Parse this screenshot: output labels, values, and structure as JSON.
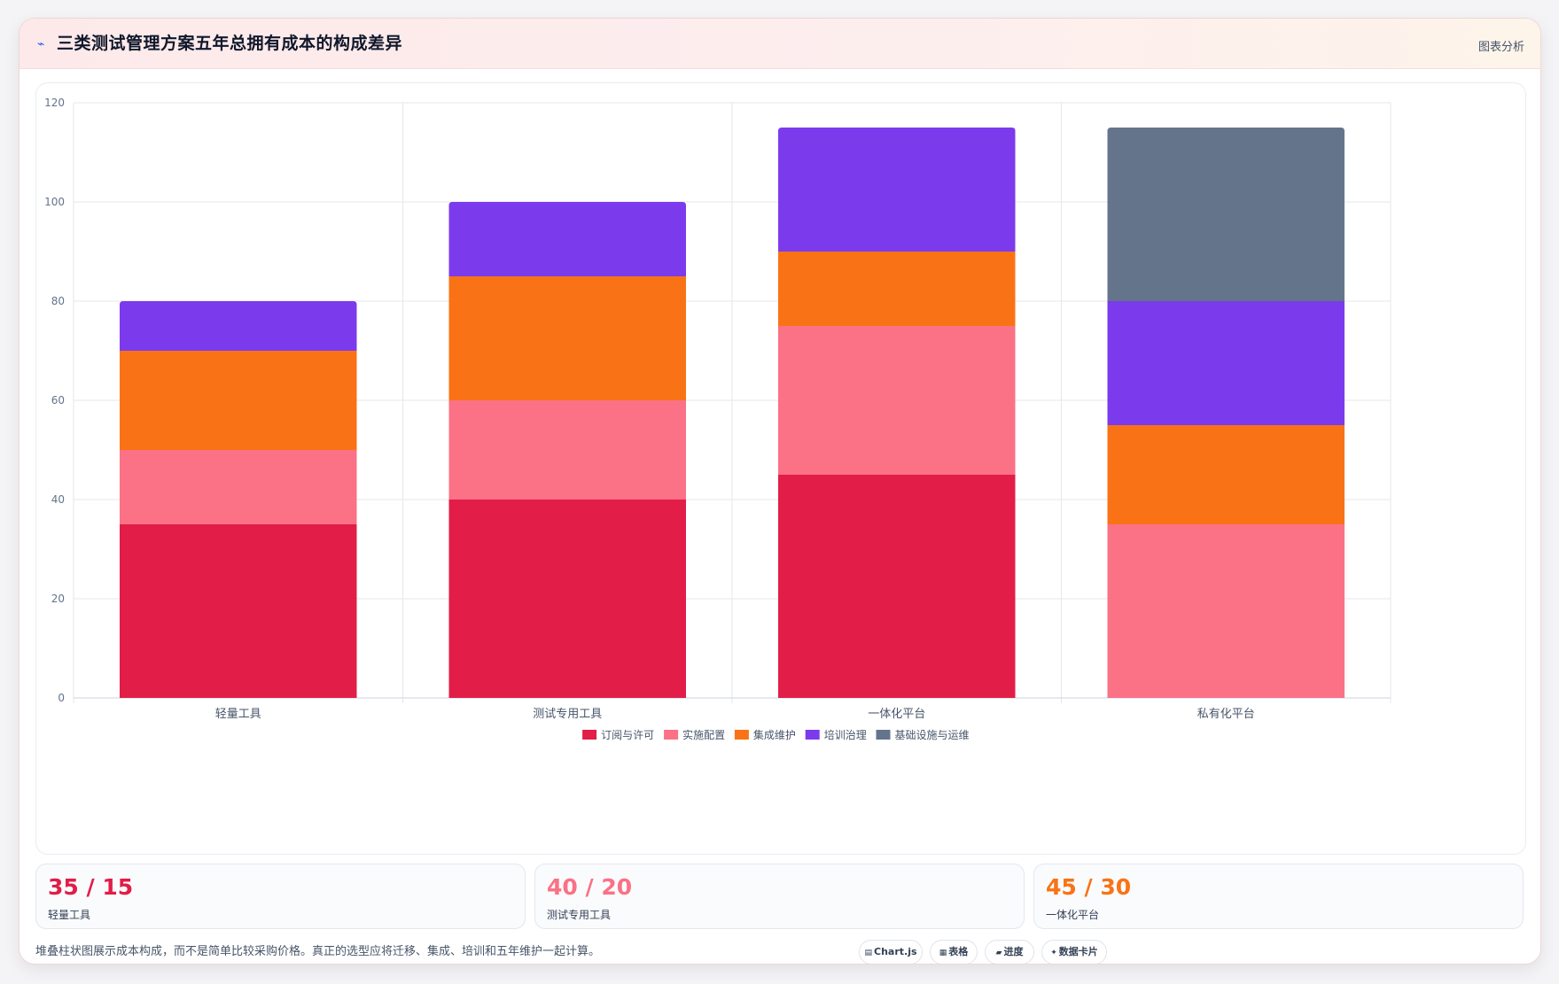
{
  "header": {
    "title": "三类测试管理方案五年总拥有成本的构成差异",
    "action_label": "图表分析",
    "title_icon": "chart-sparkline-icon"
  },
  "colors": {
    "subscription": "#e11d48",
    "implementation": "#fb7185",
    "integration": "#f97316",
    "training": "#7c3aed",
    "infrastructure": "#64748b",
    "grid": "#e5e7eb",
    "axis_text": "#64748b"
  },
  "chart_data": {
    "type": "bar",
    "stacked": true,
    "title": "",
    "xlabel": "",
    "ylabel": "",
    "ylim": [
      0,
      120
    ],
    "yticks": [
      0,
      20,
      40,
      60,
      80,
      100,
      120
    ],
    "categories": [
      "轻量工具",
      "测试专用工具",
      "一体化平台",
      "私有化平台"
    ],
    "series": [
      {
        "name": "订阅与许可",
        "color": "#e11d48",
        "values": [
          35,
          40,
          45,
          0
        ]
      },
      {
        "name": "实施配置",
        "color": "#fb7185",
        "values": [
          15,
          20,
          30,
          35
        ]
      },
      {
        "name": "集成维护",
        "color": "#f97316",
        "values": [
          20,
          25,
          15,
          20
        ]
      },
      {
        "name": "培训治理",
        "color": "#7c3aed",
        "values": [
          10,
          15,
          25,
          25
        ]
      },
      {
        "name": "基础设施与运维",
        "color": "#64748b",
        "values": [
          0,
          0,
          0,
          35
        ]
      }
    ],
    "legend_position": "bottom",
    "grid": true
  },
  "stats": [
    {
      "value": "35 / 15",
      "label": "轻量工具",
      "color": "#e11d48"
    },
    {
      "value": "40 / 20",
      "label": "测试专用工具",
      "color": "#fb7185"
    },
    {
      "value": "45 / 30",
      "label": "一体化平台",
      "color": "#f97316"
    }
  ],
  "footer": {
    "note": "堆叠柱状图展示成本构成，而不是简单比较采购价格。真正的选型应将迁移、集成、培训和五年维护一起计算。"
  },
  "chips": [
    {
      "label": "Chart.js",
      "icon": "chart-icon"
    },
    {
      "label": "表格",
      "icon": "table-icon"
    },
    {
      "label": "进度",
      "icon": "progress-icon"
    },
    {
      "label": "数据卡片",
      "icon": "sparkle-icon"
    }
  ]
}
